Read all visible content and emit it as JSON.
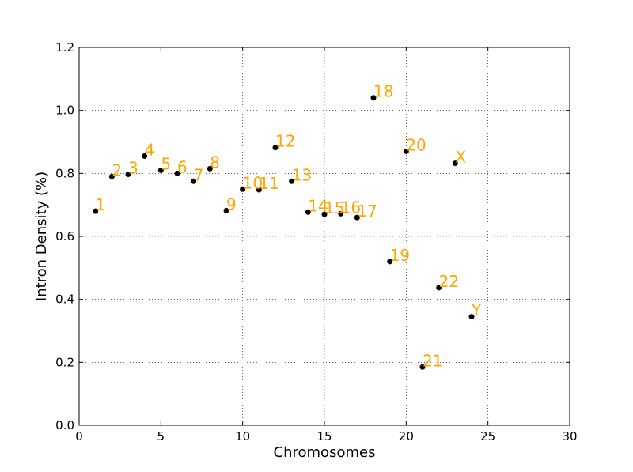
{
  "chart_data": {
    "type": "scatter",
    "title": "",
    "xlabel": "Chromosomes",
    "ylabel": "Intron Density (%)",
    "xlim": [
      0,
      30
    ],
    "ylim": [
      0.0,
      1.2
    ],
    "xticks": [
      0,
      5,
      10,
      15,
      20,
      25,
      30
    ],
    "yticks": [
      0.0,
      0.2,
      0.4,
      0.6,
      0.8,
      1.0,
      1.2
    ],
    "xtick_labels": [
      "0",
      "5",
      "10",
      "15",
      "20",
      "25",
      "30"
    ],
    "ytick_labels": [
      "0.0",
      "0.2",
      "0.4",
      "0.6",
      "0.8",
      "1.0",
      "1.2"
    ],
    "grid": true,
    "point_color": "#000000",
    "label_color": "#ffa500",
    "points": [
      {
        "label": "1",
        "x": 1,
        "y": 0.68
      },
      {
        "label": "2",
        "x": 2,
        "y": 0.79
      },
      {
        "label": "3",
        "x": 3,
        "y": 0.797
      },
      {
        "label": "4",
        "x": 4,
        "y": 0.855
      },
      {
        "label": "5",
        "x": 5,
        "y": 0.81
      },
      {
        "label": "6",
        "x": 6,
        "y": 0.8
      },
      {
        "label": "7",
        "x": 7,
        "y": 0.775
      },
      {
        "label": "8",
        "x": 8,
        "y": 0.815
      },
      {
        "label": "9",
        "x": 9,
        "y": 0.682
      },
      {
        "label": "10",
        "x": 10,
        "y": 0.75
      },
      {
        "label": "11",
        "x": 11,
        "y": 0.748
      },
      {
        "label": "12",
        "x": 12,
        "y": 0.882
      },
      {
        "label": "13",
        "x": 13,
        "y": 0.775
      },
      {
        "label": "14",
        "x": 14,
        "y": 0.677
      },
      {
        "label": "15",
        "x": 15,
        "y": 0.67
      },
      {
        "label": "16",
        "x": 16,
        "y": 0.672
      },
      {
        "label": "17",
        "x": 17,
        "y": 0.66
      },
      {
        "label": "18",
        "x": 18,
        "y": 1.04
      },
      {
        "label": "19",
        "x": 19,
        "y": 0.52
      },
      {
        "label": "20",
        "x": 20,
        "y": 0.87
      },
      {
        "label": "21",
        "x": 21,
        "y": 0.185
      },
      {
        "label": "22",
        "x": 22,
        "y": 0.437
      },
      {
        "label": "X",
        "x": 23,
        "y": 0.832
      },
      {
        "label": "Y",
        "x": 24,
        "y": 0.345
      }
    ]
  }
}
